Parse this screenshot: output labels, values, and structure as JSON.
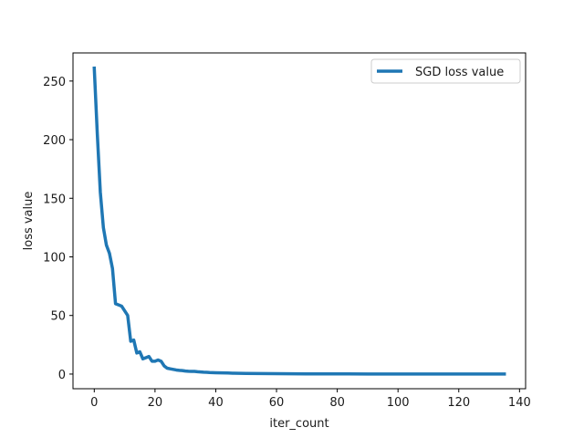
{
  "chart_data": {
    "type": "line",
    "title": "",
    "xlabel": "iter_count",
    "ylabel": "loss value",
    "xlim": [
      -7,
      142
    ],
    "ylim": [
      -12.5,
      274
    ],
    "xticks": [
      0,
      20,
      40,
      60,
      80,
      100,
      120,
      140
    ],
    "yticks": [
      0,
      50,
      100,
      150,
      200,
      250
    ],
    "grid": false,
    "legend_position": "upper right",
    "series": [
      {
        "name": "SGD loss value",
        "color": "#1f77b4",
        "x": [
          0,
          1,
          2,
          3,
          4,
          5,
          6,
          7,
          8,
          9,
          10,
          11,
          12,
          13,
          14,
          15,
          16,
          17,
          18,
          19,
          20,
          21,
          22,
          23,
          24,
          25,
          26,
          27,
          28,
          29,
          30,
          31,
          32,
          33,
          34,
          35,
          36,
          37,
          38,
          39,
          40,
          42,
          44,
          46,
          48,
          50,
          55,
          60,
          70,
          80,
          90,
          100,
          110,
          120,
          130,
          135
        ],
        "values": [
          261,
          205,
          155,
          125,
          110,
          103,
          90,
          60,
          59,
          58,
          54,
          50,
          28,
          29,
          18,
          19,
          13,
          14,
          15,
          11,
          11,
          12,
          11,
          7,
          5,
          4.5,
          4,
          3.5,
          3.2,
          3,
          2.6,
          2.4,
          2.3,
          2.3,
          2.0,
          1.8,
          1.6,
          1.5,
          1.3,
          1.2,
          1.1,
          1.0,
          0.9,
          0.7,
          0.6,
          0.5,
          0.4,
          0.3,
          0.2,
          0.15,
          0.1,
          0.1,
          0.08,
          0.06,
          0.05,
          0.05
        ]
      }
    ]
  },
  "legend": {
    "label": "SGD loss value"
  },
  "axes": {
    "xlabel": "iter_count",
    "ylabel": "loss value"
  }
}
